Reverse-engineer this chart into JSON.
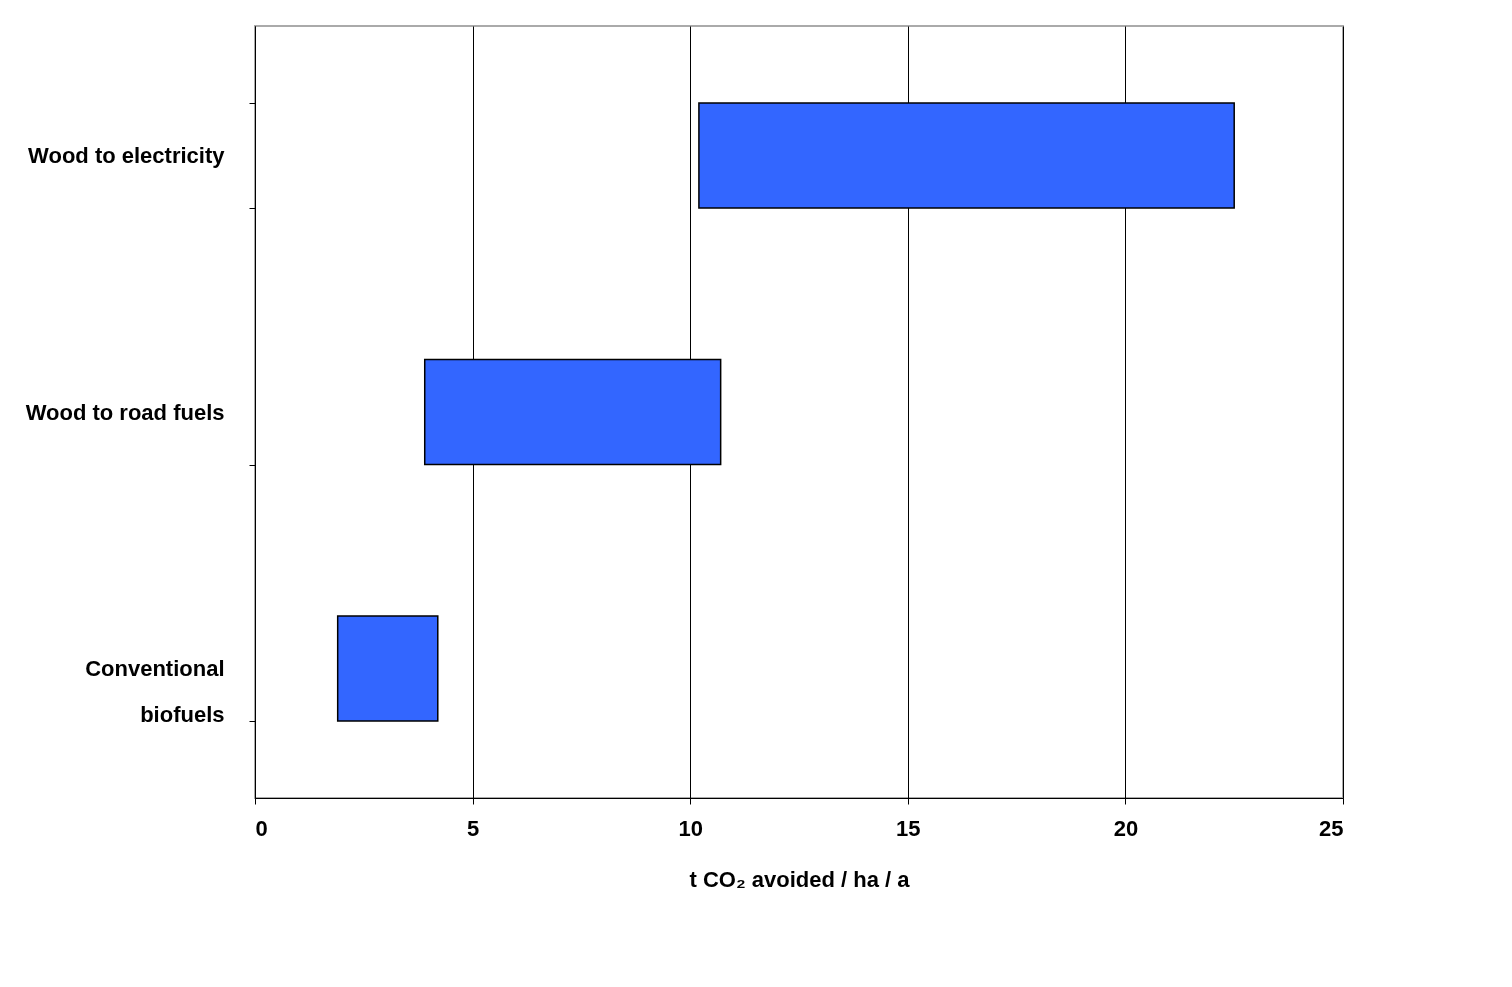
{
  "chart_data": {
    "type": "bar",
    "orientation": "horizontal",
    "categories": [
      "Wood to electricity",
      "Wood to road fuels",
      "Conventional biofuels"
    ],
    "base": [
      10.2,
      3.9,
      1.9
    ],
    "values": [
      12.3,
      6.8,
      2.3
    ],
    "color": "#3366ff",
    "xlabel": "t CO₂ avoided / ha / a",
    "xlim": [
      0,
      25
    ],
    "xticks": [
      0,
      5,
      10,
      15,
      20,
      25
    ],
    "grid": "x"
  }
}
